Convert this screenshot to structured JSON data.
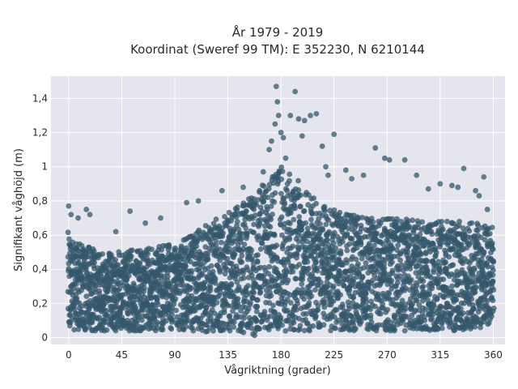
{
  "chart_data": {
    "type": "scatter",
    "title_line1": "År 1979 - 2019",
    "title_line2": "Koordinat (Sweref 99 TM): E 352230, N 6210144",
    "xlabel": "Vågriktning (grader)",
    "ylabel": "Signifikant våghöjd (m)",
    "xlim": [
      -15,
      370
    ],
    "ylim": [
      -0.04,
      1.53
    ],
    "xticks": [
      0,
      45,
      90,
      135,
      180,
      225,
      270,
      315,
      360
    ],
    "xtick_labels": [
      "0",
      "45",
      "90",
      "135",
      "180",
      "225",
      "270",
      "315",
      "360"
    ],
    "yticks": [
      0,
      0.2,
      0.4,
      0.6,
      0.8,
      1.0,
      1.2,
      1.4
    ],
    "ytick_labels": [
      "0",
      "0,2",
      "0,4",
      "0,6",
      "0,8",
      "1",
      "1,2",
      "1,4"
    ],
    "grid": true,
    "marker_color": "#34576b",
    "background_color": "#e5e5ee",
    "envelope": {
      "x": [
        0,
        10,
        20,
        30,
        45,
        60,
        75,
        90,
        105,
        120,
        135,
        150,
        160,
        170,
        180,
        190,
        200,
        210,
        225,
        240,
        255,
        270,
        285,
        300,
        315,
        330,
        345,
        360
      ],
      "ymin": [
        0.05,
        0.04,
        0.04,
        0.04,
        0.04,
        0.04,
        0.04,
        0.04,
        0.04,
        0.03,
        0.03,
        0.02,
        0.01,
        0.02,
        0.03,
        0.03,
        0.04,
        0.04,
        0.04,
        0.04,
        0.04,
        0.04,
        0.04,
        0.04,
        0.04,
        0.04,
        0.04,
        0.05
      ],
      "ymax": [
        0.62,
        0.55,
        0.52,
        0.52,
        0.5,
        0.52,
        0.53,
        0.55,
        0.6,
        0.68,
        0.73,
        0.8,
        0.87,
        0.93,
        1.0,
        0.95,
        0.88,
        0.8,
        0.75,
        0.72,
        0.7,
        0.7,
        0.7,
        0.68,
        0.68,
        0.68,
        0.68,
        0.65
      ]
    },
    "outliers": {
      "x": [
        0,
        2,
        8,
        15,
        18,
        40,
        52,
        65,
        78,
        100,
        110,
        130,
        148,
        165,
        170,
        172,
        175,
        176,
        177,
        178,
        180,
        182,
        184,
        188,
        192,
        195,
        198,
        200,
        205,
        210,
        215,
        218,
        220,
        225,
        235,
        240,
        250,
        260,
        268,
        272,
        285,
        295,
        305,
        315,
        325,
        330,
        335,
        345,
        348,
        352,
        355
      ],
      "y": [
        0.77,
        0.72,
        0.7,
        0.75,
        0.72,
        0.62,
        0.74,
        0.67,
        0.7,
        0.79,
        0.8,
        0.86,
        0.88,
        0.97,
        1.1,
        1.15,
        1.25,
        1.47,
        1.38,
        1.3,
        1.2,
        1.17,
        1.05,
        1.3,
        1.44,
        1.28,
        1.18,
        1.27,
        1.3,
        1.31,
        1.12,
        1.0,
        0.95,
        1.19,
        0.98,
        0.93,
        0.95,
        1.11,
        1.05,
        1.04,
        1.04,
        0.95,
        0.87,
        0.9,
        0.89,
        0.88,
        0.99,
        0.86,
        0.83,
        0.94,
        0.75
      ]
    }
  }
}
